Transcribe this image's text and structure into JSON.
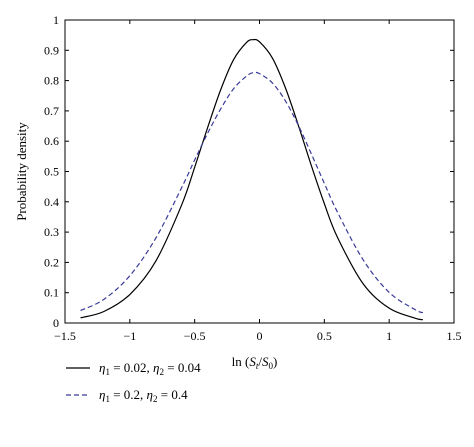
{
  "chart_data": {
    "type": "line",
    "title": "",
    "xlabel": {
      "prefix": "ln (",
      "s1": "S",
      "s1_sub": "t",
      "slash": "/",
      "s2": "S",
      "s2_sub": "0",
      "suffix": ")"
    },
    "ylabel": "Probability density",
    "xlim": [
      -1.5,
      1.5
    ],
    "ylim": [
      0,
      1
    ],
    "xticks": [
      -1.5,
      -1,
      -0.5,
      0,
      0.5,
      1,
      1.5
    ],
    "xtick_labels": [
      "−1.5",
      "−1",
      "−0.5",
      "0",
      "0.5",
      "1",
      "1.5"
    ],
    "yticks": [
      0,
      0.1,
      0.2,
      0.3,
      0.4,
      0.5,
      0.6,
      0.7,
      0.8,
      0.9,
      1
    ],
    "ytick_labels": [
      "0",
      "0.1",
      "0.2",
      "0.3",
      "0.4",
      "0.5",
      "0.6",
      "0.7",
      "0.8",
      "0.9",
      "1"
    ],
    "grid": false,
    "legend_position": "bottom",
    "series": [
      {
        "legend": {
          "eta": "η",
          "sub1": "1",
          "val1": " = 0.02, ",
          "sub2": "2",
          "val2": " = 0.04"
        },
        "color": "#000000",
        "style": "solid",
        "x": [
          -1.38,
          -1.2,
          -1.0,
          -0.8,
          -0.6,
          -0.5,
          -0.4,
          -0.3,
          -0.2,
          -0.1,
          -0.05,
          0.0,
          0.1,
          0.2,
          0.3,
          0.4,
          0.5,
          0.6,
          0.8,
          1.0,
          1.2,
          1.26
        ],
        "y": [
          0.017,
          0.038,
          0.094,
          0.204,
          0.39,
          0.514,
          0.645,
          0.769,
          0.869,
          0.926,
          0.935,
          0.928,
          0.874,
          0.776,
          0.652,
          0.519,
          0.394,
          0.284,
          0.129,
          0.049,
          0.016,
          0.011
        ]
      },
      {
        "legend": {
          "eta": "η",
          "sub1": "1",
          "val1": " = 0.2, ",
          "sub2": "2",
          "val2": " = 0.4"
        },
        "color": "#3a3a9a",
        "style": "dashed",
        "x": [
          -1.38,
          -1.2,
          -1.0,
          -0.8,
          -0.6,
          -0.5,
          -0.4,
          -0.3,
          -0.2,
          -0.1,
          -0.05,
          0.0,
          0.1,
          0.2,
          0.3,
          0.4,
          0.5,
          0.6,
          0.8,
          1.0,
          1.2,
          1.26
        ],
        "y": [
          0.041,
          0.078,
          0.156,
          0.28,
          0.447,
          0.538,
          0.626,
          0.706,
          0.773,
          0.815,
          0.826,
          0.823,
          0.792,
          0.733,
          0.652,
          0.558,
          0.461,
          0.367,
          0.208,
          0.101,
          0.044,
          0.034
        ]
      }
    ]
  }
}
